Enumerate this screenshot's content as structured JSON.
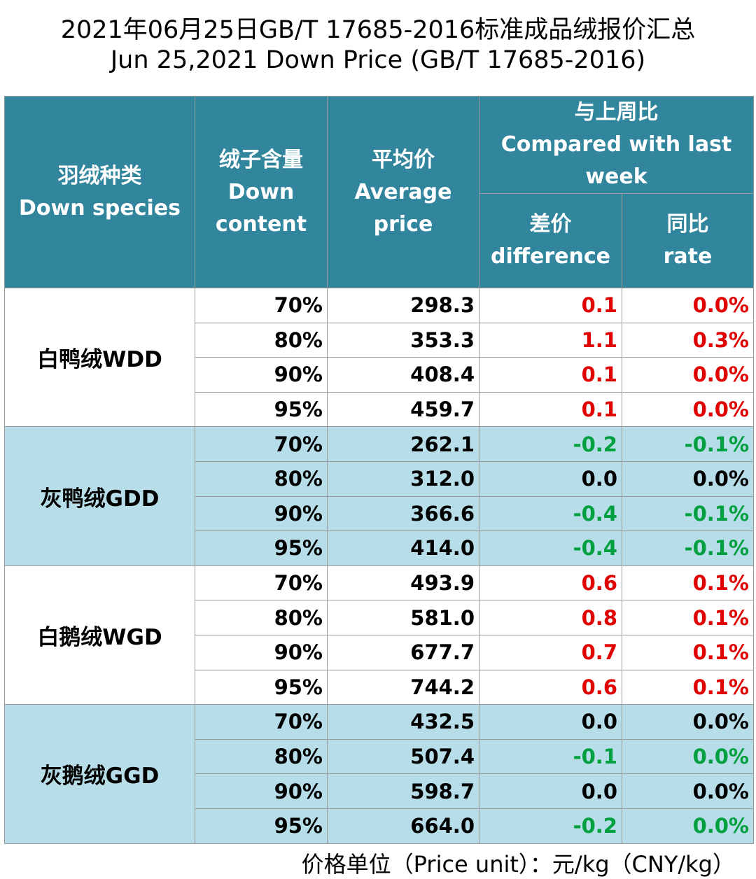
{
  "title_line1": "2021年06月25日GB/T 17685-2016标准成品绒报价汇总",
  "title_line2": "Jun 25,2021 Down Price (GB/T 17685-2016)",
  "headers": {
    "species_cn": "羽绒种类",
    "species_en": "Down species",
    "content_cn": "绒子含量",
    "content_en1": "Down",
    "content_en2": "content",
    "avg_cn": "平均价",
    "avg_en1": "Average",
    "avg_en2": "price",
    "compare_cn": "与上周比",
    "compare_en1": "Compared with last",
    "compare_en2": "week",
    "diff_cn": "差价",
    "diff_en": "difference",
    "rate_cn": "同比",
    "rate_en": "rate"
  },
  "groups": [
    {
      "name": "白鸭绒WDD",
      "bg": "white",
      "rows": [
        {
          "content": "70%",
          "price": "298.3",
          "diff": "0.1",
          "rate": "0.0%",
          "dc": "pos",
          "rc": "pos"
        },
        {
          "content": "80%",
          "price": "353.3",
          "diff": "1.1",
          "rate": "0.3%",
          "dc": "pos",
          "rc": "pos"
        },
        {
          "content": "90%",
          "price": "408.4",
          "diff": "0.1",
          "rate": "0.0%",
          "dc": "pos",
          "rc": "pos"
        },
        {
          "content": "95%",
          "price": "459.7",
          "diff": "0.1",
          "rate": "0.0%",
          "dc": "pos",
          "rc": "pos"
        }
      ]
    },
    {
      "name": "灰鸭绒GDD",
      "bg": "blue",
      "rows": [
        {
          "content": "70%",
          "price": "262.1",
          "diff": "-0.2",
          "rate": "-0.1%",
          "dc": "neg",
          "rc": "neg"
        },
        {
          "content": "80%",
          "price": "312.0",
          "diff": "0.0",
          "rate": "0.0%",
          "dc": "zero",
          "rc": "zero"
        },
        {
          "content": "90%",
          "price": "366.6",
          "diff": "-0.4",
          "rate": "-0.1%",
          "dc": "neg",
          "rc": "neg"
        },
        {
          "content": "95%",
          "price": "414.0",
          "diff": "-0.4",
          "rate": "-0.1%",
          "dc": "neg",
          "rc": "neg"
        }
      ]
    },
    {
      "name": "白鹅绒WGD",
      "bg": "white",
      "rows": [
        {
          "content": "70%",
          "price": "493.9",
          "diff": "0.6",
          "rate": "0.1%",
          "dc": "pos",
          "rc": "pos"
        },
        {
          "content": "80%",
          "price": "581.0",
          "diff": "0.8",
          "rate": "0.1%",
          "dc": "pos",
          "rc": "pos"
        },
        {
          "content": "90%",
          "price": "677.7",
          "diff": "0.7",
          "rate": "0.1%",
          "dc": "pos",
          "rc": "pos"
        },
        {
          "content": "95%",
          "price": "744.2",
          "diff": "0.6",
          "rate": "0.1%",
          "dc": "pos",
          "rc": "pos"
        }
      ]
    },
    {
      "name": "灰鹅绒GGD",
      "bg": "blue",
      "rows": [
        {
          "content": "70%",
          "price": "432.5",
          "diff": "0.0",
          "rate": "0.0%",
          "dc": "zero",
          "rc": "zero"
        },
        {
          "content": "80%",
          "price": "507.4",
          "diff": "-0.1",
          "rate": "0.0%",
          "dc": "neg",
          "rc": "neg"
        },
        {
          "content": "90%",
          "price": "598.7",
          "diff": "0.0",
          "rate": "0.0%",
          "dc": "zero",
          "rc": "zero"
        },
        {
          "content": "95%",
          "price": "664.0",
          "diff": "-0.2",
          "rate": "0.0%",
          "dc": "neg",
          "rc": "neg"
        }
      ]
    }
  ],
  "footer": "价格单位（Price unit）：元/kg（CNY/kg）",
  "colors": {
    "header_bg": "#31859c",
    "blue_rows": "#b7dee8",
    "positive": "#e00000",
    "negative": "#00a040"
  }
}
